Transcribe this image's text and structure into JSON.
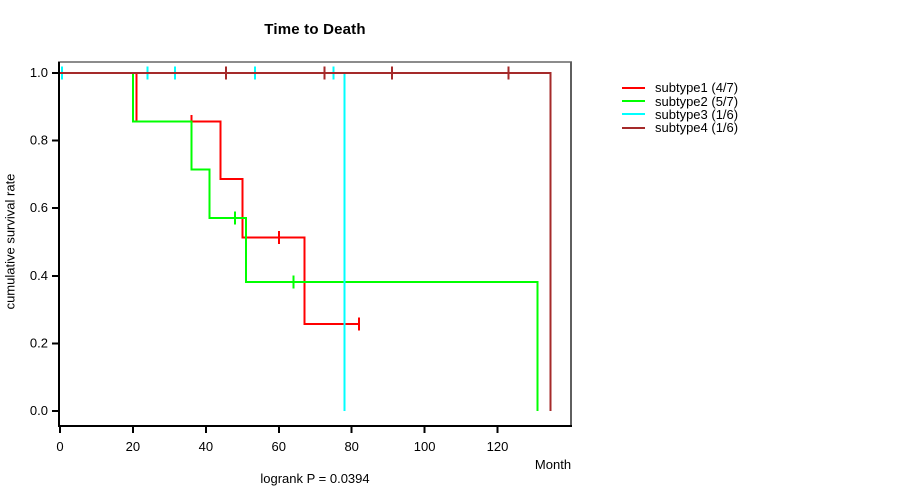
{
  "title": "Time to Death",
  "annotation": "logrank P = 0.0394",
  "axes": {
    "x": {
      "label": "Month",
      "tick_labels": [
        "0",
        "20",
        "40",
        "60",
        "80",
        "100",
        "120"
      ]
    },
    "y": {
      "label": "cumulative survival rate",
      "tick_labels": [
        "0.0",
        "0.2",
        "0.4",
        "0.6",
        "0.8",
        "1.0"
      ]
    }
  },
  "chart_data": {
    "type": "line",
    "subtype": "kaplan-meier-step",
    "title": "Time to Death",
    "xlabel": "Month",
    "ylabel": "cumulative survival rate",
    "annotation": "logrank P = 0.0394",
    "x_ticks": [
      0,
      20,
      40,
      60,
      80,
      100,
      120
    ],
    "y_ticks": [
      0.0,
      0.2,
      0.4,
      0.6,
      0.8,
      1.0
    ],
    "xlim": [
      0,
      140
    ],
    "ylim": [
      0,
      1
    ],
    "grid": false,
    "legend_position": "right-outside",
    "series": [
      {
        "name": "subtype1 (4/7)",
        "color": "#FF0000",
        "steps": [
          [
            0,
            1.0
          ],
          [
            21,
            1.0
          ],
          [
            21,
            0.857
          ],
          [
            44,
            0.857
          ],
          [
            44,
            0.686
          ],
          [
            50,
            0.686
          ],
          [
            50,
            0.514
          ],
          [
            67,
            0.514
          ],
          [
            67,
            0.257
          ],
          [
            82,
            0.257
          ]
        ],
        "censor_marks": [
          [
            36,
            0.857
          ],
          [
            60,
            0.514
          ],
          [
            82,
            0.257
          ]
        ]
      },
      {
        "name": "subtype2 (5/7)",
        "color": "#00FF00",
        "steps": [
          [
            0,
            1.0
          ],
          [
            20,
            1.0
          ],
          [
            20,
            0.857
          ],
          [
            36,
            0.857
          ],
          [
            36,
            0.714
          ],
          [
            41,
            0.714
          ],
          [
            41,
            0.571
          ],
          [
            51,
            0.571
          ],
          [
            51,
            0.381
          ],
          [
            131,
            0.381
          ],
          [
            131,
            0.0
          ]
        ],
        "censor_marks": [
          [
            48,
            0.571
          ],
          [
            64,
            0.381
          ]
        ]
      },
      {
        "name": "subtype3 (1/6)",
        "color": "#00FFFF",
        "steps": [
          [
            0,
            1.0
          ],
          [
            78,
            1.0
          ],
          [
            78,
            0.0
          ]
        ],
        "censor_marks": [
          [
            0.5,
            1.0
          ],
          [
            24,
            1.0
          ],
          [
            31.5,
            1.0
          ],
          [
            53.5,
            1.0
          ],
          [
            75,
            1.0
          ]
        ]
      },
      {
        "name": "subtype4 (1/6)",
        "color": "#A52A2A",
        "steps": [
          [
            0,
            1.0
          ],
          [
            134.5,
            1.0
          ],
          [
            134.5,
            0.0
          ]
        ],
        "censor_marks": [
          [
            45.5,
            1.0
          ],
          [
            72.5,
            1.0
          ],
          [
            91,
            1.0
          ],
          [
            123,
            1.0
          ]
        ]
      }
    ]
  }
}
